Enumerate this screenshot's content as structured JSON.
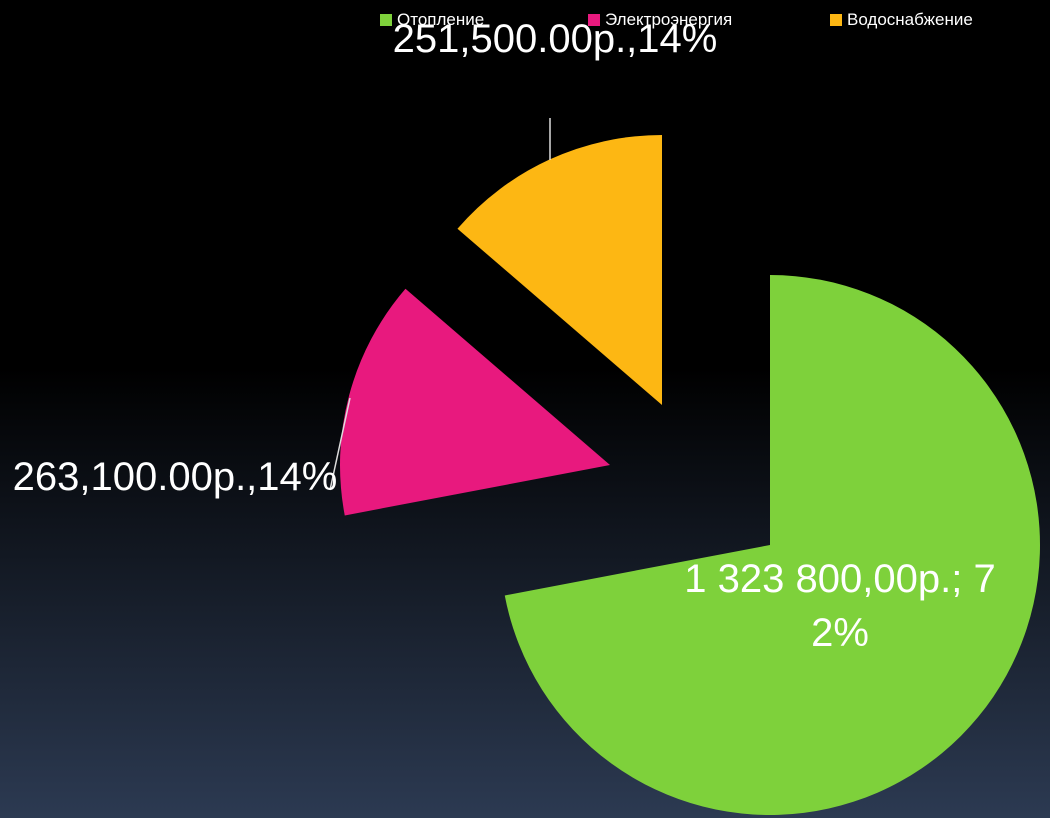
{
  "chart_data": {
    "type": "pie",
    "categories": [
      "Отопление",
      "Электроэнергия",
      "Водоснабжение"
    ],
    "values": [
      1323800,
      263100,
      251500
    ],
    "value_labels": [
      "1 323 800,00р.; 72%",
      "263,100.00р.,14%",
      "251,500.00р.,14%"
    ],
    "colors": [
      "#7ed13b",
      "#e8197e",
      "#fdb713"
    ],
    "legend": "top-right"
  }
}
